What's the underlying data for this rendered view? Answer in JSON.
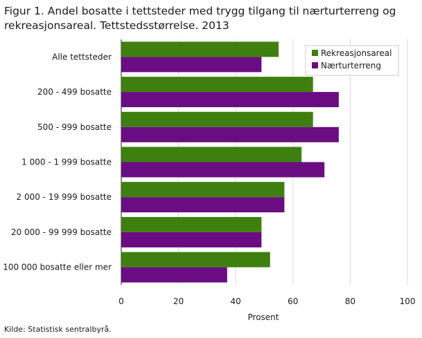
{
  "figure": {
    "title": "Figur 1. Andel bosatte i tettsteder med trygg tilgang til nærturterreng og rekreasjonsareal. Tettstedsstørrelse. 2013",
    "source": "Kilde: Statistisk sentralbyrå."
  },
  "chart_data": {
    "type": "bar",
    "orientation": "horizontal",
    "title": "Figur 1. Andel bosatte i tettsteder med trygg tilgang til nærturterreng og rekreasjonsareal. Tettstedsstørrelse. 2013",
    "categories": [
      "Alle tettsteder",
      "200 - 499 bosatte",
      "500 - 999 bosatte",
      "1 000 - 1 999 bosatte",
      "2 000 - 19 999 bosatte",
      "20 000 - 99 999 bosatte",
      "100 000 bosatte eller mer"
    ],
    "series": [
      {
        "name": "Rekreasjonsareal",
        "color": "#3f7f10",
        "values": [
          55,
          67,
          67,
          63,
          57,
          49,
          52
        ]
      },
      {
        "name": "Nærturterreng",
        "color": "#6a0d82",
        "values": [
          49,
          76,
          76,
          71,
          57,
          49,
          37
        ]
      }
    ],
    "xlabel": "Prosent",
    "ylabel": "",
    "xlim": [
      0,
      100
    ],
    "xticks": [
      "0",
      "20",
      "40",
      "60",
      "80",
      "100"
    ],
    "grid": true,
    "legend": "top-right"
  }
}
